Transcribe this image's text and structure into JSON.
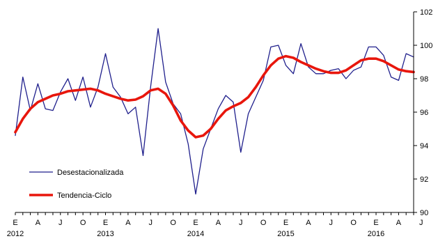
{
  "chart_data": {
    "type": "line",
    "title": "",
    "xlabel": "",
    "ylabel": "",
    "ylim": [
      90,
      102
    ],
    "y_ticks": [
      90,
      92,
      94,
      96,
      98,
      100,
      102
    ],
    "y_axis_side": "right",
    "grid": false,
    "legend_placement": "bottom-left",
    "month_labels": [
      "E",
      "A",
      "J",
      "O",
      "E",
      "A",
      "J",
      "O",
      "E",
      "A",
      "J",
      "O",
      "E",
      "A",
      "J",
      "O",
      "E",
      "A",
      "J"
    ],
    "year_labels": [
      "2012",
      "2013",
      "2014",
      "2015",
      "2016"
    ],
    "x": [
      "2012-01",
      "2012-02",
      "2012-03",
      "2012-04",
      "2012-05",
      "2012-06",
      "2012-07",
      "2012-08",
      "2012-09",
      "2012-10",
      "2012-11",
      "2012-12",
      "2013-01",
      "2013-02",
      "2013-03",
      "2013-04",
      "2013-05",
      "2013-06",
      "2013-07",
      "2013-08",
      "2013-09",
      "2013-10",
      "2013-11",
      "2013-12",
      "2014-01",
      "2014-02",
      "2014-03",
      "2014-04",
      "2014-05",
      "2014-06",
      "2014-07",
      "2014-08",
      "2014-09",
      "2014-10",
      "2014-11",
      "2014-12",
      "2015-01",
      "2015-02",
      "2015-03",
      "2015-04",
      "2015-05",
      "2015-06",
      "2015-07",
      "2015-08",
      "2015-09",
      "2015-10",
      "2015-11",
      "2015-12",
      "2016-01",
      "2016-02",
      "2016-03",
      "2016-04",
      "2016-05",
      "2016-06"
    ],
    "series": [
      {
        "name": "Desestacionalizada",
        "color": "#1f1f8c",
        "values": [
          94.6,
          98.1,
          96.1,
          97.7,
          96.2,
          96.1,
          97.2,
          98.0,
          96.7,
          98.1,
          96.3,
          97.5,
          99.5,
          97.5,
          96.9,
          95.9,
          96.3,
          93.4,
          97.5,
          101.0,
          97.8,
          96.5,
          95.9,
          94.1,
          91.1,
          93.8,
          95.0,
          96.2,
          97.0,
          96.6,
          93.6,
          95.9,
          96.9,
          97.9,
          99.9,
          100.0,
          98.8,
          98.3,
          100.1,
          98.7,
          98.3,
          98.3,
          98.5,
          98.6,
          98.0,
          98.5,
          98.7,
          99.9,
          99.9,
          99.4,
          98.1,
          97.9,
          99.5,
          99.3
        ]
      },
      {
        "name": "Tendencia-Ciclo",
        "color": "#e8160c",
        "values": [
          94.8,
          95.6,
          96.2,
          96.6,
          96.8,
          97.0,
          97.1,
          97.25,
          97.3,
          97.35,
          97.4,
          97.3,
          97.1,
          96.95,
          96.8,
          96.7,
          96.75,
          96.95,
          97.3,
          97.4,
          97.1,
          96.4,
          95.5,
          94.9,
          94.5,
          94.6,
          95.0,
          95.6,
          96.1,
          96.35,
          96.55,
          96.9,
          97.5,
          98.2,
          98.8,
          99.2,
          99.35,
          99.25,
          99.0,
          98.8,
          98.6,
          98.45,
          98.35,
          98.35,
          98.5,
          98.8,
          99.1,
          99.2,
          99.2,
          99.05,
          98.8,
          98.55,
          98.45,
          98.4
        ]
      }
    ]
  }
}
